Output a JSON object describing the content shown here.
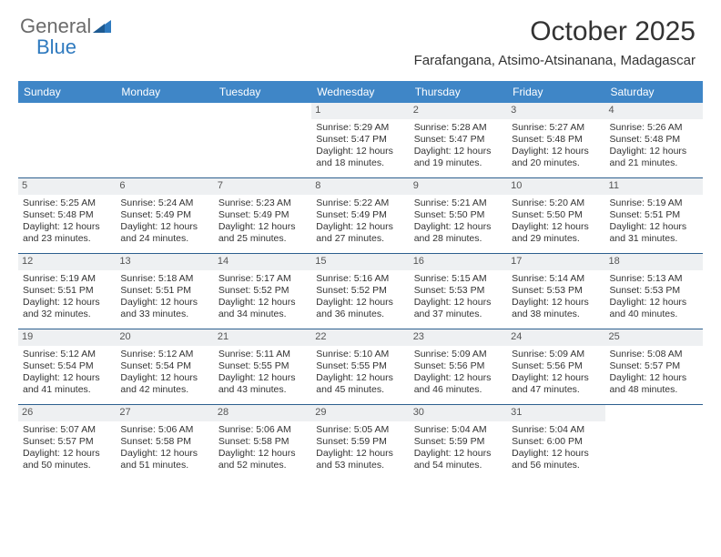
{
  "brand": {
    "name1": "General",
    "name2": "Blue"
  },
  "title": "October 2025",
  "location": "Farafangana, Atsimo-Atsinanana, Madagascar",
  "colors": {
    "header_bg": "#3f86c7",
    "header_text": "#ffffff",
    "daynum_bg": "#eef0f2",
    "week_border": "#2d5f8f",
    "brand_gray": "#6b6b6b",
    "brand_blue": "#2f7abf",
    "text": "#333333"
  },
  "weekdays": [
    "Sunday",
    "Monday",
    "Tuesday",
    "Wednesday",
    "Thursday",
    "Friday",
    "Saturday"
  ],
  "weeks": [
    [
      null,
      null,
      null,
      {
        "n": "1",
        "sr": "5:29 AM",
        "ss": "5:47 PM",
        "dl1": "12 hours",
        "dl2": "and 18 minutes."
      },
      {
        "n": "2",
        "sr": "5:28 AM",
        "ss": "5:47 PM",
        "dl1": "12 hours",
        "dl2": "and 19 minutes."
      },
      {
        "n": "3",
        "sr": "5:27 AM",
        "ss": "5:48 PM",
        "dl1": "12 hours",
        "dl2": "and 20 minutes."
      },
      {
        "n": "4",
        "sr": "5:26 AM",
        "ss": "5:48 PM",
        "dl1": "12 hours",
        "dl2": "and 21 minutes."
      }
    ],
    [
      {
        "n": "5",
        "sr": "5:25 AM",
        "ss": "5:48 PM",
        "dl1": "12 hours",
        "dl2": "and 23 minutes."
      },
      {
        "n": "6",
        "sr": "5:24 AM",
        "ss": "5:49 PM",
        "dl1": "12 hours",
        "dl2": "and 24 minutes."
      },
      {
        "n": "7",
        "sr": "5:23 AM",
        "ss": "5:49 PM",
        "dl1": "12 hours",
        "dl2": "and 25 minutes."
      },
      {
        "n": "8",
        "sr": "5:22 AM",
        "ss": "5:49 PM",
        "dl1": "12 hours",
        "dl2": "and 27 minutes."
      },
      {
        "n": "9",
        "sr": "5:21 AM",
        "ss": "5:50 PM",
        "dl1": "12 hours",
        "dl2": "and 28 minutes."
      },
      {
        "n": "10",
        "sr": "5:20 AM",
        "ss": "5:50 PM",
        "dl1": "12 hours",
        "dl2": "and 29 minutes."
      },
      {
        "n": "11",
        "sr": "5:19 AM",
        "ss": "5:51 PM",
        "dl1": "12 hours",
        "dl2": "and 31 minutes."
      }
    ],
    [
      {
        "n": "12",
        "sr": "5:19 AM",
        "ss": "5:51 PM",
        "dl1": "12 hours",
        "dl2": "and 32 minutes."
      },
      {
        "n": "13",
        "sr": "5:18 AM",
        "ss": "5:51 PM",
        "dl1": "12 hours",
        "dl2": "and 33 minutes."
      },
      {
        "n": "14",
        "sr": "5:17 AM",
        "ss": "5:52 PM",
        "dl1": "12 hours",
        "dl2": "and 34 minutes."
      },
      {
        "n": "15",
        "sr": "5:16 AM",
        "ss": "5:52 PM",
        "dl1": "12 hours",
        "dl2": "and 36 minutes."
      },
      {
        "n": "16",
        "sr": "5:15 AM",
        "ss": "5:53 PM",
        "dl1": "12 hours",
        "dl2": "and 37 minutes."
      },
      {
        "n": "17",
        "sr": "5:14 AM",
        "ss": "5:53 PM",
        "dl1": "12 hours",
        "dl2": "and 38 minutes."
      },
      {
        "n": "18",
        "sr": "5:13 AM",
        "ss": "5:53 PM",
        "dl1": "12 hours",
        "dl2": "and 40 minutes."
      }
    ],
    [
      {
        "n": "19",
        "sr": "5:12 AM",
        "ss": "5:54 PM",
        "dl1": "12 hours",
        "dl2": "and 41 minutes."
      },
      {
        "n": "20",
        "sr": "5:12 AM",
        "ss": "5:54 PM",
        "dl1": "12 hours",
        "dl2": "and 42 minutes."
      },
      {
        "n": "21",
        "sr": "5:11 AM",
        "ss": "5:55 PM",
        "dl1": "12 hours",
        "dl2": "and 43 minutes."
      },
      {
        "n": "22",
        "sr": "5:10 AM",
        "ss": "5:55 PM",
        "dl1": "12 hours",
        "dl2": "and 45 minutes."
      },
      {
        "n": "23",
        "sr": "5:09 AM",
        "ss": "5:56 PM",
        "dl1": "12 hours",
        "dl2": "and 46 minutes."
      },
      {
        "n": "24",
        "sr": "5:09 AM",
        "ss": "5:56 PM",
        "dl1": "12 hours",
        "dl2": "and 47 minutes."
      },
      {
        "n": "25",
        "sr": "5:08 AM",
        "ss": "5:57 PM",
        "dl1": "12 hours",
        "dl2": "and 48 minutes."
      }
    ],
    [
      {
        "n": "26",
        "sr": "5:07 AM",
        "ss": "5:57 PM",
        "dl1": "12 hours",
        "dl2": "and 50 minutes."
      },
      {
        "n": "27",
        "sr": "5:06 AM",
        "ss": "5:58 PM",
        "dl1": "12 hours",
        "dl2": "and 51 minutes."
      },
      {
        "n": "28",
        "sr": "5:06 AM",
        "ss": "5:58 PM",
        "dl1": "12 hours",
        "dl2": "and 52 minutes."
      },
      {
        "n": "29",
        "sr": "5:05 AM",
        "ss": "5:59 PM",
        "dl1": "12 hours",
        "dl2": "and 53 minutes."
      },
      {
        "n": "30",
        "sr": "5:04 AM",
        "ss": "5:59 PM",
        "dl1": "12 hours",
        "dl2": "and 54 minutes."
      },
      {
        "n": "31",
        "sr": "5:04 AM",
        "ss": "6:00 PM",
        "dl1": "12 hours",
        "dl2": "and 56 minutes."
      },
      null
    ]
  ],
  "labels": {
    "sunrise": "Sunrise:",
    "sunset": "Sunset:",
    "daylight": "Daylight:"
  }
}
